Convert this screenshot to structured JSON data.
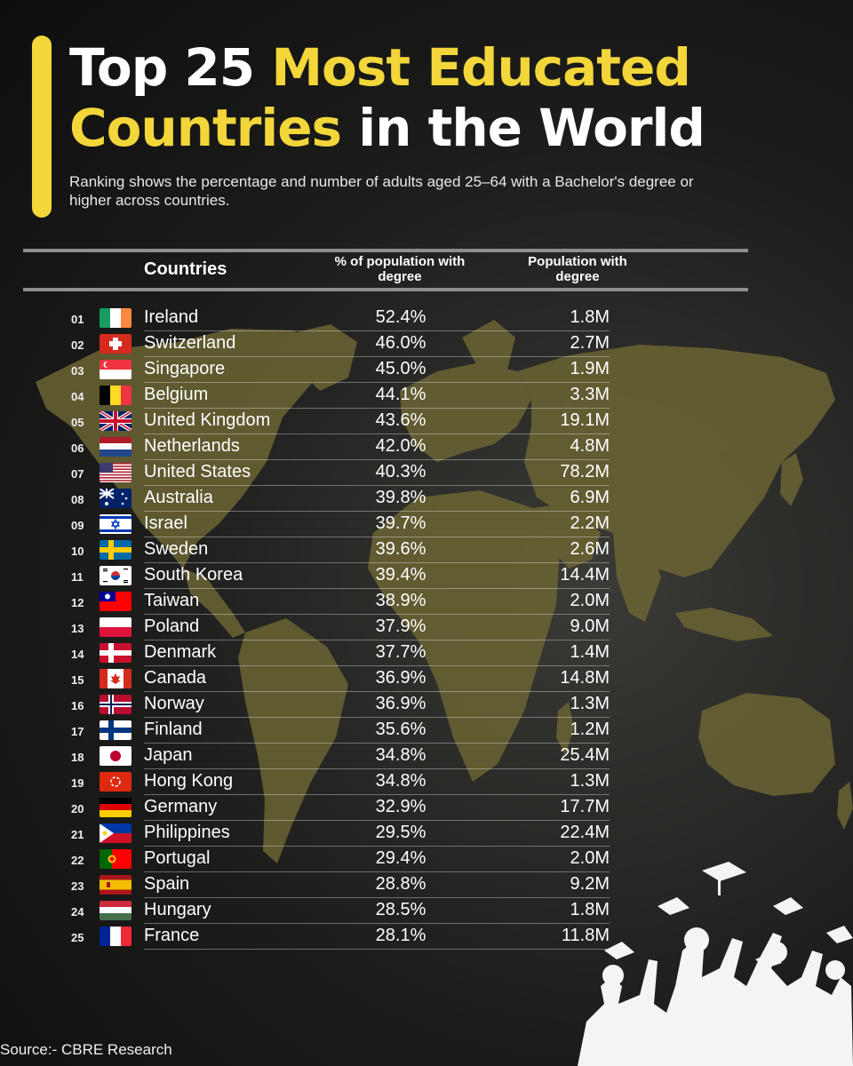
{
  "title": {
    "part1": "Top 25 ",
    "part2": "Most Educated",
    "part3": "Countries",
    "part4": " in the World"
  },
  "subtitle": "Ranking shows the percentage and number of adults aged 25–64 with a Bachelor's degree or higher across countries.",
  "headers": {
    "countries": "Countries",
    "pct": "% of population with degree",
    "pop": "Population with degree"
  },
  "source": "Source:- CBRE Research",
  "colors": {
    "accent": "#f2d63a",
    "map": "#6b6434",
    "background": "#1c1c1b"
  },
  "chart_data": {
    "type": "table",
    "columns": [
      "Countries",
      "% of population with degree",
      "Population with degree"
    ],
    "rows": [
      {
        "rank": "01",
        "country": "Ireland",
        "flag": "ireland-flag",
        "pct": "52.4%",
        "pop": "1.8M"
      },
      {
        "rank": "02",
        "country": "Switzerland",
        "flag": "switzerland-flag",
        "pct": "46.0%",
        "pop": "2.7M"
      },
      {
        "rank": "03",
        "country": "Singapore",
        "flag": "singapore-flag",
        "pct": "45.0%",
        "pop": "1.9M"
      },
      {
        "rank": "04",
        "country": "Belgium",
        "flag": "belgium-flag",
        "pct": "44.1%",
        "pop": "3.3M"
      },
      {
        "rank": "05",
        "country": "United Kingdom",
        "flag": "united-kingdom-flag",
        "pct": "43.6%",
        "pop": "19.1M"
      },
      {
        "rank": "06",
        "country": "Netherlands",
        "flag": "netherlands-flag",
        "pct": "42.0%",
        "pop": "4.8M"
      },
      {
        "rank": "07",
        "country": "United States",
        "flag": "united-states-flag",
        "pct": "40.3%",
        "pop": "78.2M"
      },
      {
        "rank": "08",
        "country": "Australia",
        "flag": "australia-flag",
        "pct": "39.8%",
        "pop": "6.9M"
      },
      {
        "rank": "09",
        "country": "Israel",
        "flag": "israel-flag",
        "pct": "39.7%",
        "pop": "2.2M"
      },
      {
        "rank": "10",
        "country": "Sweden",
        "flag": "sweden-flag",
        "pct": "39.6%",
        "pop": "2.6M"
      },
      {
        "rank": "11",
        "country": "South Korea",
        "flag": "south-korea-flag",
        "pct": "39.4%",
        "pop": "14.4M"
      },
      {
        "rank": "12",
        "country": "Taiwan",
        "flag": "taiwan-flag",
        "pct": "38.9%",
        "pop": "2.0M"
      },
      {
        "rank": "13",
        "country": "Poland",
        "flag": "poland-flag",
        "pct": "37.9%",
        "pop": "9.0M"
      },
      {
        "rank": "14",
        "country": "Denmark",
        "flag": "denmark-flag",
        "pct": "37.7%",
        "pop": "1.4M"
      },
      {
        "rank": "15",
        "country": "Canada",
        "flag": "canada-flag",
        "pct": "36.9%",
        "pop": "14.8M"
      },
      {
        "rank": "16",
        "country": "Norway",
        "flag": "norway-flag",
        "pct": "36.9%",
        "pop": "1.3M"
      },
      {
        "rank": "17",
        "country": "Finland",
        "flag": "finland-flag",
        "pct": "35.6%",
        "pop": "1.2M"
      },
      {
        "rank": "18",
        "country": "Japan",
        "flag": "japan-flag",
        "pct": "34.8%",
        "pop": "25.4M"
      },
      {
        "rank": "19",
        "country": "Hong Kong",
        "flag": "hong-kong-flag",
        "pct": "34.8%",
        "pop": "1.3M"
      },
      {
        "rank": "20",
        "country": "Germany",
        "flag": "germany-flag",
        "pct": "32.9%",
        "pop": "17.7M"
      },
      {
        "rank": "21",
        "country": "Philippines",
        "flag": "philippines-flag",
        "pct": "29.5%",
        "pop": "22.4M"
      },
      {
        "rank": "22",
        "country": "Portugal",
        "flag": "portugal-flag",
        "pct": "29.4%",
        "pop": "2.0M"
      },
      {
        "rank": "23",
        "country": "Spain",
        "flag": "spain-flag",
        "pct": "28.8%",
        "pop": "9.2M"
      },
      {
        "rank": "24",
        "country": "Hungary",
        "flag": "hungary-flag",
        "pct": "28.5%",
        "pop": "1.8M"
      },
      {
        "rank": "25",
        "country": "France",
        "flag": "france-flag",
        "pct": "28.1%",
        "pop": "11.8M"
      }
    ]
  }
}
